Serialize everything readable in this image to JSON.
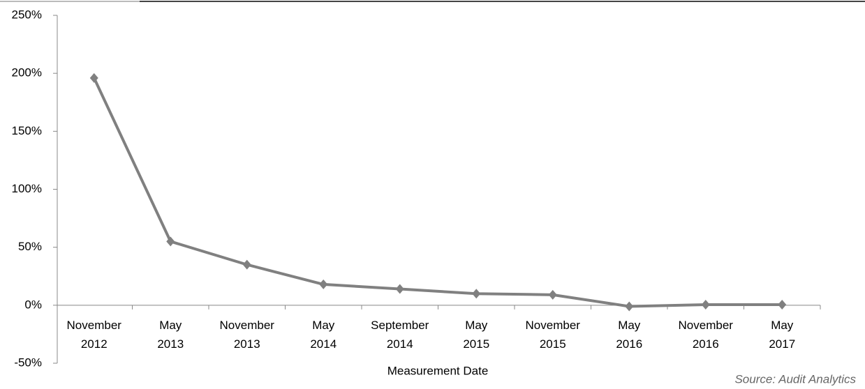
{
  "chart_data": {
    "type": "line",
    "categories": [
      "November 2012",
      "May 2013",
      "November 2013",
      "May 2014",
      "September 2014",
      "May 2015",
      "November 2015",
      "May 2016",
      "November 2016",
      "May 2017"
    ],
    "values": [
      196,
      55,
      35,
      18,
      14,
      10,
      9,
      -1,
      0.5,
      0.5
    ],
    "color": "#808080",
    "ylim": [
      -50,
      250
    ],
    "yticks": [
      {
        "value": -50,
        "label": "-50%"
      },
      {
        "value": 0,
        "label": "0%"
      },
      {
        "value": 50,
        "label": "50%"
      },
      {
        "value": 100,
        "label": "100%"
      },
      {
        "value": 150,
        "label": "150%"
      },
      {
        "value": 200,
        "label": "200%"
      },
      {
        "value": 250,
        "label": "250%"
      }
    ],
    "x_label": "Measurement Date",
    "source": "Source:  Audit Analytics",
    "grid": false
  }
}
